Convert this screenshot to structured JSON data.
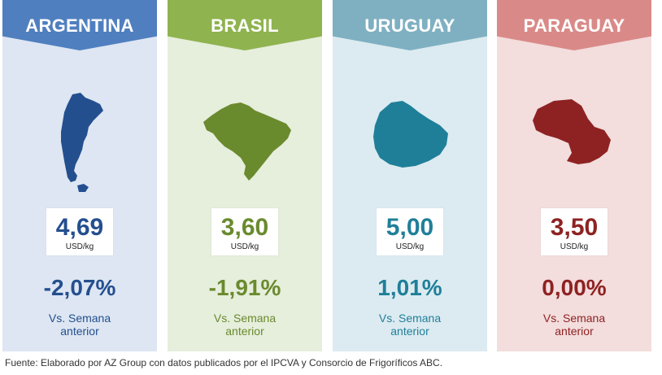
{
  "countries": [
    {
      "name": "ARGENTINA",
      "price": "4,69",
      "unit": "USD/kg",
      "change": "-2,07%",
      "caption_line1": "Vs. Semana",
      "caption_line2": "anterior",
      "banner_color": "#4f7fbf",
      "panel_color": "#dde6f2",
      "accent_color": "#244f8f",
      "icon": "argentina-map-icon"
    },
    {
      "name": "BRASIL",
      "price": "3,60",
      "unit": "USD/kg",
      "change": "-1,91%",
      "caption_line1": "Vs. Semana",
      "caption_line2": "anterior",
      "banner_color": "#8fb34f",
      "panel_color": "#e6eedc",
      "accent_color": "#6a8a2e",
      "icon": "brasil-map-icon"
    },
    {
      "name": "URUGUAY",
      "price": "5,00",
      "unit": "USD/kg",
      "change": "1,01%",
      "caption_line1": "Vs. Semana",
      "caption_line2": "anterior",
      "banner_color": "#7fb0c2",
      "panel_color": "#dcebf1",
      "accent_color": "#1f7f99",
      "icon": "uruguay-map-icon"
    },
    {
      "name": "PARAGUAY",
      "price": "3,50",
      "unit": "USD/kg",
      "change": "0,00%",
      "caption_line1": "Vs. Semana",
      "caption_line2": "anterior",
      "banner_color": "#d98a88",
      "panel_color": "#f3dddd",
      "accent_color": "#8e2222",
      "icon": "paraguay-map-icon"
    }
  ],
  "source": "Fuente: Elaborado por AZ Group con datos publicados por el IPCVA y Consorcio de Frigoríficos ABC."
}
